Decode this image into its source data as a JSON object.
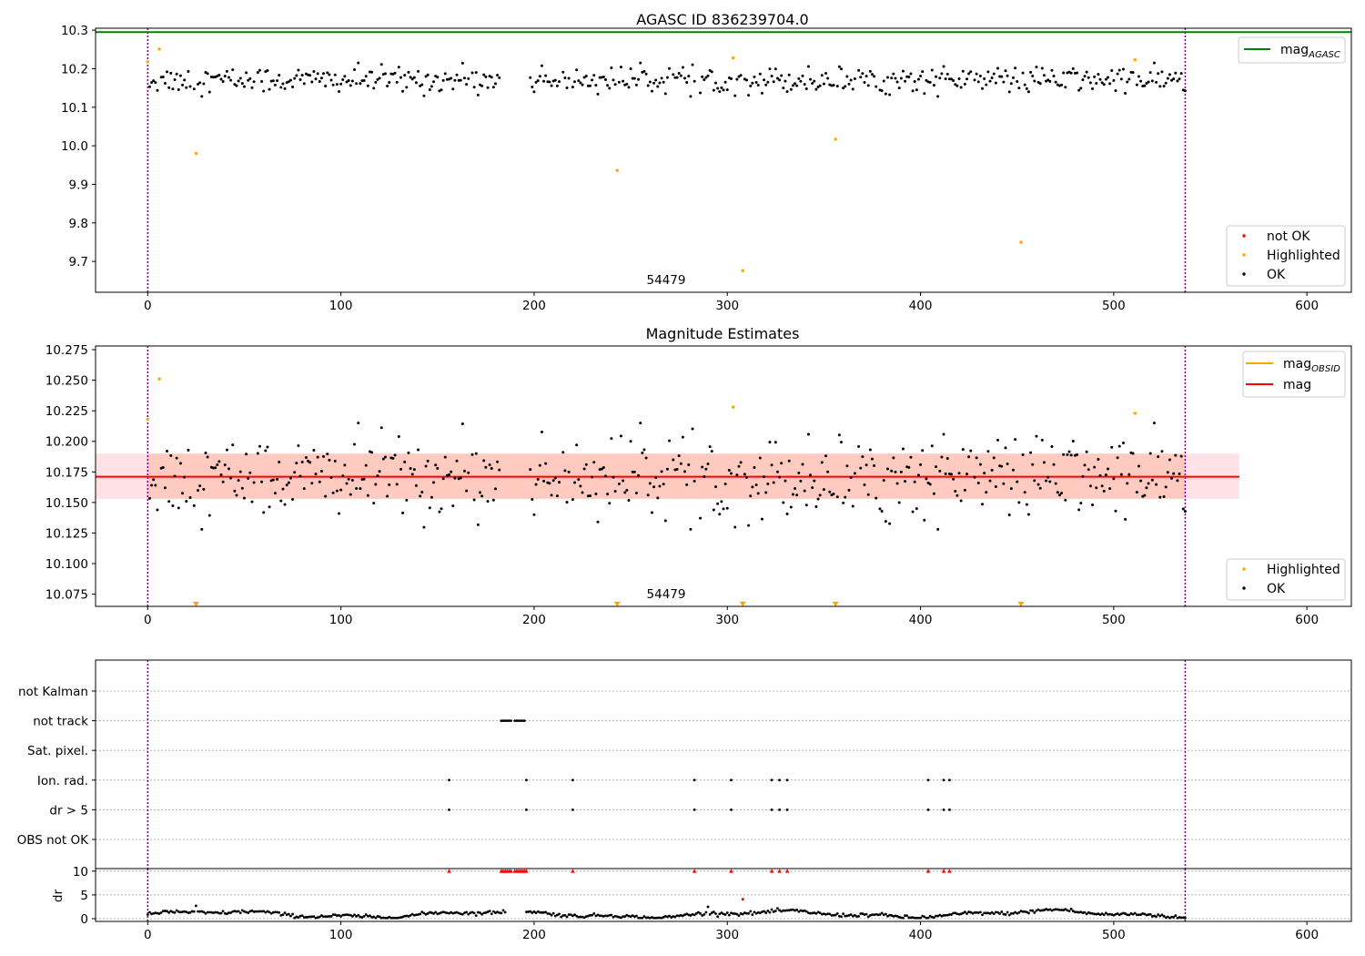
{
  "chart_data": [
    {
      "type": "scatter",
      "title": "AGASC ID 836239704.0",
      "xlim": [
        -27,
        623
      ],
      "ylim": [
        9.62,
        10.305
      ],
      "xticks": [
        "0",
        "100",
        "200",
        "300",
        "400",
        "500",
        "600"
      ],
      "yticks": [
        "9.7",
        "9.8",
        "9.9",
        "10.0",
        "10.1",
        "10.2",
        "10.3"
      ],
      "annotation": {
        "text": "54479",
        "x": 268,
        "y": 9.634
      },
      "hlines": [
        {
          "name": "mag",
          "subscript": "AGASC",
          "y": 10.295,
          "color": "#008000"
        }
      ],
      "vlines": [
        {
          "x": 0,
          "color": "#800080"
        },
        {
          "x": 537,
          "color": "#800080"
        }
      ],
      "series": [
        {
          "name": "not OK",
          "color": "#ff0000",
          "points": []
        },
        {
          "name": "Highlighted",
          "color": "#ffa500",
          "points": [
            [
              0,
              10.218
            ],
            [
              6,
              10.251
            ],
            [
              25,
              9.98
            ],
            [
              243,
              9.936
            ],
            [
              303,
              10.228
            ],
            [
              308,
              9.676
            ],
            [
              356,
              10.017
            ],
            [
              452,
              9.75
            ],
            [
              511,
              10.223
            ]
          ]
        },
        {
          "name": "OK",
          "color": "#000000",
          "points": "generated: ~530 points, x 0-537, y 10.13-10.215 (mean 10.171)"
        }
      ],
      "legends": [
        {
          "position": "upper-right",
          "entries": [
            {
              "label": "mag",
              "subscript": "AGASC",
              "color": "#008000",
              "marker": "line"
            }
          ]
        },
        {
          "position": "lower-right",
          "entries": [
            {
              "label": "not OK",
              "color": "#ff0000",
              "marker": "dot"
            },
            {
              "label": "Highlighted",
              "color": "#ffa500",
              "marker": "dot"
            },
            {
              "label": "OK",
              "color": "#000000",
              "marker": "dot"
            }
          ]
        }
      ]
    },
    {
      "type": "scatter",
      "title": "Magnitude Estimates",
      "xlim": [
        -27,
        623
      ],
      "ylim": [
        10.065,
        10.278
      ],
      "xticks": [
        "0",
        "100",
        "200",
        "300",
        "400",
        "500",
        "600"
      ],
      "yticks": [
        "10.075",
        "10.100",
        "10.125",
        "10.150",
        "10.175",
        "10.200",
        "10.225",
        "10.250",
        "10.275"
      ],
      "annotation": {
        "text": "54479",
        "x": 268,
        "y": 10.069
      },
      "bands": [
        {
          "x0": -27,
          "x1": 565,
          "y0": 10.153,
          "y1": 10.19,
          "color": "#ffb6c1",
          "opacity": 0.4
        },
        {
          "x0": 0,
          "x1": 537,
          "y0": 10.153,
          "y1": 10.19,
          "color": "#ffa07a",
          "opacity": 0.35
        }
      ],
      "hlines": [
        {
          "name": "mag",
          "y": 10.171,
          "color": "#ff0000",
          "x0": -27,
          "x1": 565
        }
      ],
      "vlines": [
        {
          "x": 0,
          "color": "#800080"
        },
        {
          "x": 537,
          "color": "#800080"
        }
      ],
      "series": [
        {
          "name": "Highlighted",
          "color": "#ffa500",
          "points": [
            [
              0,
              10.218
            ],
            [
              6,
              10.251
            ],
            [
              303,
              10.228
            ],
            [
              511,
              10.223
            ]
          ]
        },
        {
          "name": "Highlighted (below range)",
          "color": "#ffa500",
          "points": [
            [
              25,
              10.067
            ],
            [
              243,
              10.067
            ],
            [
              308,
              10.067
            ],
            [
              356,
              10.067
            ],
            [
              452,
              10.067
            ]
          ]
        },
        {
          "name": "OK",
          "color": "#000000",
          "points": "generated: same as panel 1"
        }
      ],
      "legends": [
        {
          "position": "upper-right",
          "entries": [
            {
              "label": "mag",
              "subscript": "OBSID",
              "color": "#ffa500",
              "marker": "line"
            },
            {
              "label": "mag",
              "color": "#ff0000",
              "marker": "line"
            }
          ]
        },
        {
          "position": "lower-right",
          "entries": [
            {
              "label": "Highlighted",
              "color": "#ffa500",
              "marker": "dot"
            },
            {
              "label": "OK",
              "color": "#000000",
              "marker": "dot"
            }
          ]
        }
      ]
    },
    {
      "type": "scatter",
      "title": "",
      "xlim": [
        -27,
        623
      ],
      "categories": [
        "not Kalman",
        "not track",
        "Sat. pixel.",
        "Ion. rad.",
        "dr > 5",
        "OBS not OK"
      ],
      "flags": {
        "not track": [
          183,
          184,
          185,
          186,
          187,
          188,
          190,
          191,
          192,
          193,
          194,
          195
        ],
        "Ion. rad.": [
          156,
          196,
          220,
          283,
          302,
          323,
          327,
          331,
          404,
          412,
          415
        ],
        "dr > 5": [
          156,
          196,
          220,
          283,
          302,
          323,
          327,
          331,
          404,
          412,
          415
        ]
      },
      "vlines": [
        {
          "x": 0,
          "color": "#800080"
        },
        {
          "x": 537,
          "color": "#800080"
        }
      ]
    },
    {
      "type": "scatter",
      "title": "",
      "ylabel": "dr",
      "xlim": [
        -27,
        623
      ],
      "ylim": [
        -0.5,
        10.5
      ],
      "xticks": [
        "0",
        "100",
        "200",
        "300",
        "400",
        "500",
        "600"
      ],
      "yticks": [
        "0",
        "5",
        "10"
      ],
      "clipped_markers": {
        "color": "#ff0000",
        "y": 10,
        "x": [
          156,
          183,
          184,
          185,
          186,
          187,
          188,
          190,
          191,
          192,
          193,
          194,
          195,
          196,
          220,
          283,
          302,
          323,
          327,
          331,
          404,
          412,
          415
        ]
      },
      "red_points": [
        [
          308,
          4.1
        ]
      ],
      "series": [
        {
          "name": "dr",
          "color": "#000000",
          "points": "generated: ~530 points, x 0-537, y 0.2-2.8"
        }
      ],
      "vlines": [
        {
          "x": 0,
          "color": "#800080"
        },
        {
          "x": 537,
          "color": "#800080"
        }
      ]
    }
  ]
}
